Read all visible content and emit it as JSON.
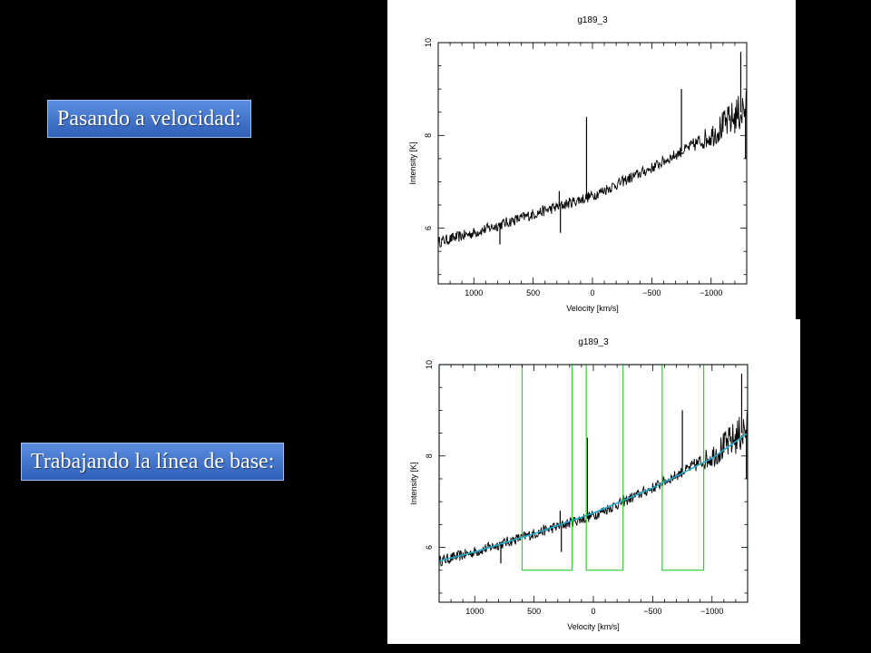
{
  "slide": {
    "label_velocity": "Pasando a velocidad:",
    "label_baseline": "Trabajando la línea de base:"
  },
  "chart_data": [
    {
      "type": "line",
      "title": "g189_3",
      "xlabel": "Velocity   [km/s]",
      "ylabel": "Intensity [K]",
      "xlim": [
        1300,
        -1300
      ],
      "ylim": [
        4.8,
        10
      ],
      "x_reversed": true,
      "xticks": [
        1000,
        500,
        0,
        -500,
        -1000
      ],
      "xtick_labels": [
        "1000",
        "500",
        "0",
        "−500",
        "−1000"
      ],
      "yticks": [
        6,
        8,
        10
      ],
      "ytick_labels": [
        "6",
        "8",
        "10"
      ],
      "series": [
        {
          "color": "#000000",
          "style": "noisy-spectrum",
          "x": [
            1300,
            1000,
            500,
            0,
            -500,
            -1000,
            -1300
          ],
          "values": [
            5.7,
            5.9,
            6.3,
            6.7,
            7.3,
            8.0,
            8.6
          ],
          "spikes": [
            {
              "x": 780,
              "value": 5.65
            },
            {
              "x": 280,
              "value": 6.8
            },
            {
              "x": 270,
              "value": 5.9
            },
            {
              "x": 50,
              "value": 8.4
            },
            {
              "x": -750,
              "value": 9.0
            },
            {
              "x": -1250,
              "value": 9.8
            },
            {
              "x": -1290,
              "value": 7.5
            }
          ]
        }
      ]
    },
    {
      "type": "line",
      "title": "g189_3",
      "xlabel": "Velocity   [km/s]",
      "ylabel": "Intensity [K]",
      "xlim": [
        1300,
        -1300
      ],
      "ylim": [
        4.8,
        10
      ],
      "x_reversed": true,
      "xticks": [
        1000,
        500,
        0,
        -500,
        -1000
      ],
      "xtick_labels": [
        "1000",
        "500",
        "0",
        "−500",
        "−1000"
      ],
      "yticks": [
        6,
        8,
        10
      ],
      "ytick_labels": [
        "6",
        "8",
        "10"
      ],
      "series": [
        {
          "color": "#000000",
          "style": "noisy-spectrum",
          "x": [
            1300,
            1000,
            500,
            0,
            -500,
            -1000,
            -1300
          ],
          "values": [
            5.7,
            5.9,
            6.3,
            6.7,
            7.3,
            8.0,
            8.6
          ],
          "spikes": [
            {
              "x": 780,
              "value": 5.65
            },
            {
              "x": 280,
              "value": 6.8
            },
            {
              "x": 270,
              "value": 5.9
            },
            {
              "x": 50,
              "value": 8.4
            },
            {
              "x": -750,
              "value": 9.0
            },
            {
              "x": -1250,
              "value": 9.8
            },
            {
              "x": -1290,
              "value": 7.5
            }
          ]
        },
        {
          "color": "#22aacc",
          "style": "fit",
          "x": [
            1300,
            1000,
            500,
            0,
            -500,
            -1000,
            -1300
          ],
          "values": [
            5.7,
            5.9,
            6.3,
            6.75,
            7.3,
            7.95,
            8.5
          ]
        },
        {
          "color": "#33cc33",
          "style": "window-mask",
          "low": 5.5,
          "high": 10,
          "windows": [
            [
              1300,
              600
            ],
            [
              180,
              60
            ],
            [
              -250,
              -580
            ],
            [
              -930,
              -1300
            ]
          ]
        }
      ]
    }
  ]
}
